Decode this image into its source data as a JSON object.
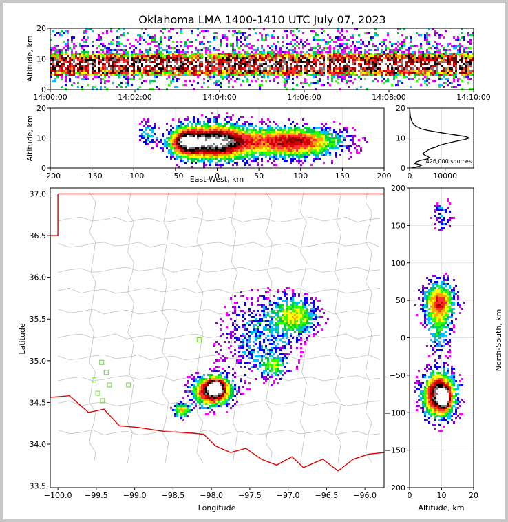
{
  "chart_data": [
    {
      "id": "time-altitude",
      "type": "heatmap",
      "title": "Oklahoma LMA 1400-1410 UTC July 07, 2023",
      "ylabel": "Altitude, km",
      "xlabel": "",
      "xlim": [
        "14:00:00",
        "14:10:00"
      ],
      "xticks": [
        "14:00:00",
        "14:02:00",
        "14:04:00",
        "14:06:00",
        "14:08:00",
        "14:10:00"
      ],
      "ylim": [
        0,
        20
      ],
      "yticks": [
        "0",
        "10",
        "20"
      ],
      "dense_band_km": [
        5,
        12
      ],
      "sparse_band_km": [
        0,
        20
      ],
      "grid": false
    },
    {
      "id": "ew-altitude",
      "type": "heatmap",
      "xlabel": "East-West, km",
      "ylabel": "Altitude, km",
      "xlim": [
        -200,
        200
      ],
      "xticks": [
        "−200",
        "−150",
        "−100",
        "−50",
        "0",
        "50",
        "100",
        "150",
        "200"
      ],
      "ylim": [
        0,
        20
      ],
      "yticks": [
        "0",
        "10",
        "20"
      ],
      "cores": [
        {
          "x": -5,
          "z": 9,
          "sx": 30,
          "sz": 4,
          "weight": 1.0
        },
        {
          "x": -40,
          "z": 9,
          "sx": 12,
          "sz": 3,
          "weight": 0.6
        },
        {
          "x": 90,
          "z": 9,
          "sx": 40,
          "sz": 3.5,
          "weight": 0.75
        },
        {
          "x": -85,
          "z": 12,
          "sx": 8,
          "sz": 2.5,
          "weight": 0.3
        }
      ],
      "grid": true
    },
    {
      "id": "altitude-histogram",
      "type": "line",
      "xlim": [
        0,
        18000
      ],
      "xticks": [
        "0",
        "10000"
      ],
      "ylim": [
        0,
        20
      ],
      "yticks": [
        "0",
        "10",
        "20"
      ],
      "annotation": "426,000 sources",
      "profile": {
        "altitude_km": [
          0,
          0.5,
          1,
          1.5,
          2,
          2.5,
          3,
          3.5,
          4,
          4.5,
          5,
          5.5,
          6,
          6.5,
          7,
          7.5,
          8,
          8.5,
          9,
          9.5,
          10,
          10.5,
          11,
          11.5,
          12,
          12.5,
          13,
          14,
          15,
          16,
          17,
          18,
          19,
          20
        ],
        "sources": [
          600,
          2500,
          3500,
          1500,
          1800,
          3000,
          5000,
          5600,
          4800,
          4000,
          3800,
          4600,
          5200,
          6000,
          7400,
          8200,
          9600,
          11400,
          13400,
          15400,
          16800,
          15800,
          13200,
          10400,
          7800,
          5400,
          3400,
          1700,
          900,
          500,
          280,
          160,
          90,
          40
        ]
      },
      "grid": true
    },
    {
      "id": "plan-view",
      "type": "heatmap",
      "xlabel": "Longitude",
      "ylabel": "Latitude",
      "xlim": [
        -100.1,
        -95.75
      ],
      "xticks": [
        "−100.0",
        "−99.5",
        "−99.0",
        "−98.5",
        "−98.0",
        "−97.5",
        "−97.0",
        "−96.5",
        "−96.0"
      ],
      "ylim": [
        33.48,
        37.07
      ],
      "yticks": [
        "33.5",
        "34.0",
        "34.5",
        "35.0",
        "35.5",
        "36.0",
        "36.5",
        "37.0"
      ],
      "cores": [
        {
          "lon": -98.0,
          "lat": 34.65,
          "slon": 0.17,
          "slat": 0.12,
          "weight": 1.0
        },
        {
          "lon": -97.95,
          "lat": 34.7,
          "slon": 0.06,
          "slat": 0.06,
          "weight": 0.5
        },
        {
          "lon": -98.4,
          "lat": 34.42,
          "slon": 0.08,
          "slat": 0.06,
          "weight": 0.55
        },
        {
          "lon": -96.9,
          "lat": 35.55,
          "slon": 0.2,
          "slat": 0.15,
          "weight": 0.45
        },
        {
          "lon": -97.4,
          "lat": 35.3,
          "slon": 0.35,
          "slat": 0.35,
          "weight": 0.25
        },
        {
          "lon": -97.2,
          "lat": 34.95,
          "slon": 0.12,
          "slat": 0.08,
          "weight": 0.35
        }
      ],
      "stations": [
        {
          "lon": -99.43,
          "lat": 34.98
        },
        {
          "lon": -99.37,
          "lat": 34.86
        },
        {
          "lon": -99.53,
          "lat": 34.77
        },
        {
          "lon": -99.33,
          "lat": 34.71
        },
        {
          "lon": -99.08,
          "lat": 34.71
        },
        {
          "lon": -99.48,
          "lat": 34.61
        },
        {
          "lon": -99.42,
          "lat": 34.52
        },
        {
          "lon": -98.16,
          "lat": 35.25
        }
      ],
      "grid": false
    },
    {
      "id": "altitude-ns",
      "type": "heatmap",
      "xlabel": "Altitude, km",
      "ylabel": "North-South, km",
      "xlim": [
        0,
        20
      ],
      "xticks": [
        "0",
        "10",
        "20"
      ],
      "ylim": [
        -200,
        200
      ],
      "yticks": [
        "−200",
        "−150",
        "−100",
        "−50",
        "0",
        "50",
        "100",
        "150",
        "200"
      ],
      "cores": [
        {
          "y": -75,
          "z": 9,
          "sy": 20,
          "sz": 3.5,
          "weight": 1.0
        },
        {
          "y": -80,
          "z": 10.5,
          "sy": 8,
          "sz": 1.0,
          "weight": 0.6
        },
        {
          "y": 50,
          "z": 9,
          "sy": 18,
          "sz": 3.5,
          "weight": 0.6
        },
        {
          "y": 10,
          "z": 9,
          "sy": 25,
          "sz": 2.5,
          "weight": 0.3
        },
        {
          "y": 165,
          "z": 10,
          "sy": 15,
          "sz": 2,
          "weight": 0.25
        }
      ],
      "grid": true
    }
  ]
}
